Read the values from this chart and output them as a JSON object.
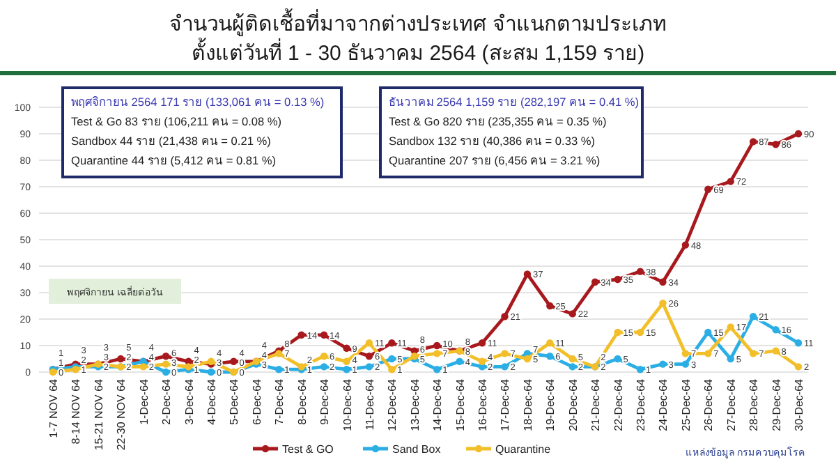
{
  "chart_data": {
    "type": "line",
    "title": "จำนวนผู้ติดเชื้อที่มาจากต่างประเทศ จำแนกตามประเภท",
    "subtitle": "ตั้งแต่วันที่  1 - 30  ธันวาคม  2564  (สะสม  1,159 ราย)",
    "categories": [
      "1-7 NOV 64",
      "8-14 NOV 64",
      "15-21 NOV 64",
      "22-30 NOV 64",
      "1-Dec-64",
      "2-Dec-64",
      "3-Dec-64",
      "4-Dec-64",
      "5-Dec-64",
      "6-Dec-64",
      "7-Dec-64",
      "8-Dec-64",
      "9-Dec-64",
      "10-Dec-64",
      "11-Dec-64",
      "12-Dec-64",
      "13-Dec-64",
      "14-Dec-64",
      "15-Dec-64",
      "16-Dec-64",
      "17-Dec-64",
      "18-Dec-64",
      "19-Dec-64",
      "20-Dec-64",
      "21-Dec-64",
      "22-Dec-64",
      "23-Dec-64",
      "24-Dec-64",
      "25-Dec-64",
      "26-Dec-64",
      "27-Dec-64",
      "28-Dec-64",
      "29-Dec-64",
      "30-Dec-64"
    ],
    "series": [
      {
        "name": "Test & GO",
        "color": "#a8191e",
        "values": [
          1,
          3,
          3,
          5,
          4,
          6,
          4,
          3,
          4,
          4,
          8,
          14,
          14,
          9,
          6,
          11,
          8,
          10,
          8,
          11,
          21,
          37,
          25,
          22,
          34,
          35,
          38,
          34,
          48,
          69,
          72,
          87,
          86,
          90
        ]
      },
      {
        "name": "Sand Box",
        "color": "#2aaee4",
        "values": [
          1,
          2,
          2,
          2,
          4,
          0,
          1,
          0,
          0,
          3,
          1,
          1,
          2,
          1,
          2,
          5,
          5,
          1,
          4,
          2,
          2,
          7,
          6,
          2,
          2,
          5,
          1,
          3,
          3,
          15,
          5,
          21,
          16,
          11
        ]
      },
      {
        "name": "Quarantine",
        "color": "#f2bf2a",
        "values": [
          0,
          1,
          3,
          2,
          2,
          3,
          2,
          4,
          0,
          4,
          7,
          2,
          6,
          4,
          11,
          1,
          6,
          7,
          8,
          4,
          7,
          5,
          11,
          5,
          2,
          15,
          15,
          26,
          7,
          7,
          17,
          7,
          8,
          2
        ]
      }
    ],
    "ylim": [
      0,
      100
    ],
    "yticks": [
      0,
      10,
      20,
      30,
      40,
      50,
      60,
      70,
      80,
      90,
      100
    ],
    "grid": "y",
    "marker": "circle",
    "legend": "bottom",
    "data_labels": true,
    "annotations": [
      "พฤศจิกายน 2564  171 ราย (133,061 คน = 0.13 %)",
      "Test & Go  83 ราย (106,211 คน = 0.08 %)",
      "Sandbox  44 ราย (21,438 คน = 0.21 %)",
      "Quarantine  44 ราย (5,412 คน = 0.81 %)",
      "ธันวาคม 2564  1,159 ราย (282,197 คน = 0.41 %)",
      "Test & Go  820 ราย (235,355 คน = 0.35 %)",
      "Sandbox  132 ราย (40,386 คน = 0.33 %)",
      "Quarantine  207 ราย (6,456 คน = 3.21 %)",
      "พฤศจิกายน เฉลี่ยต่อวัน",
      "แหล่งข้อมูล กรมควบคุมโรค"
    ]
  }
}
